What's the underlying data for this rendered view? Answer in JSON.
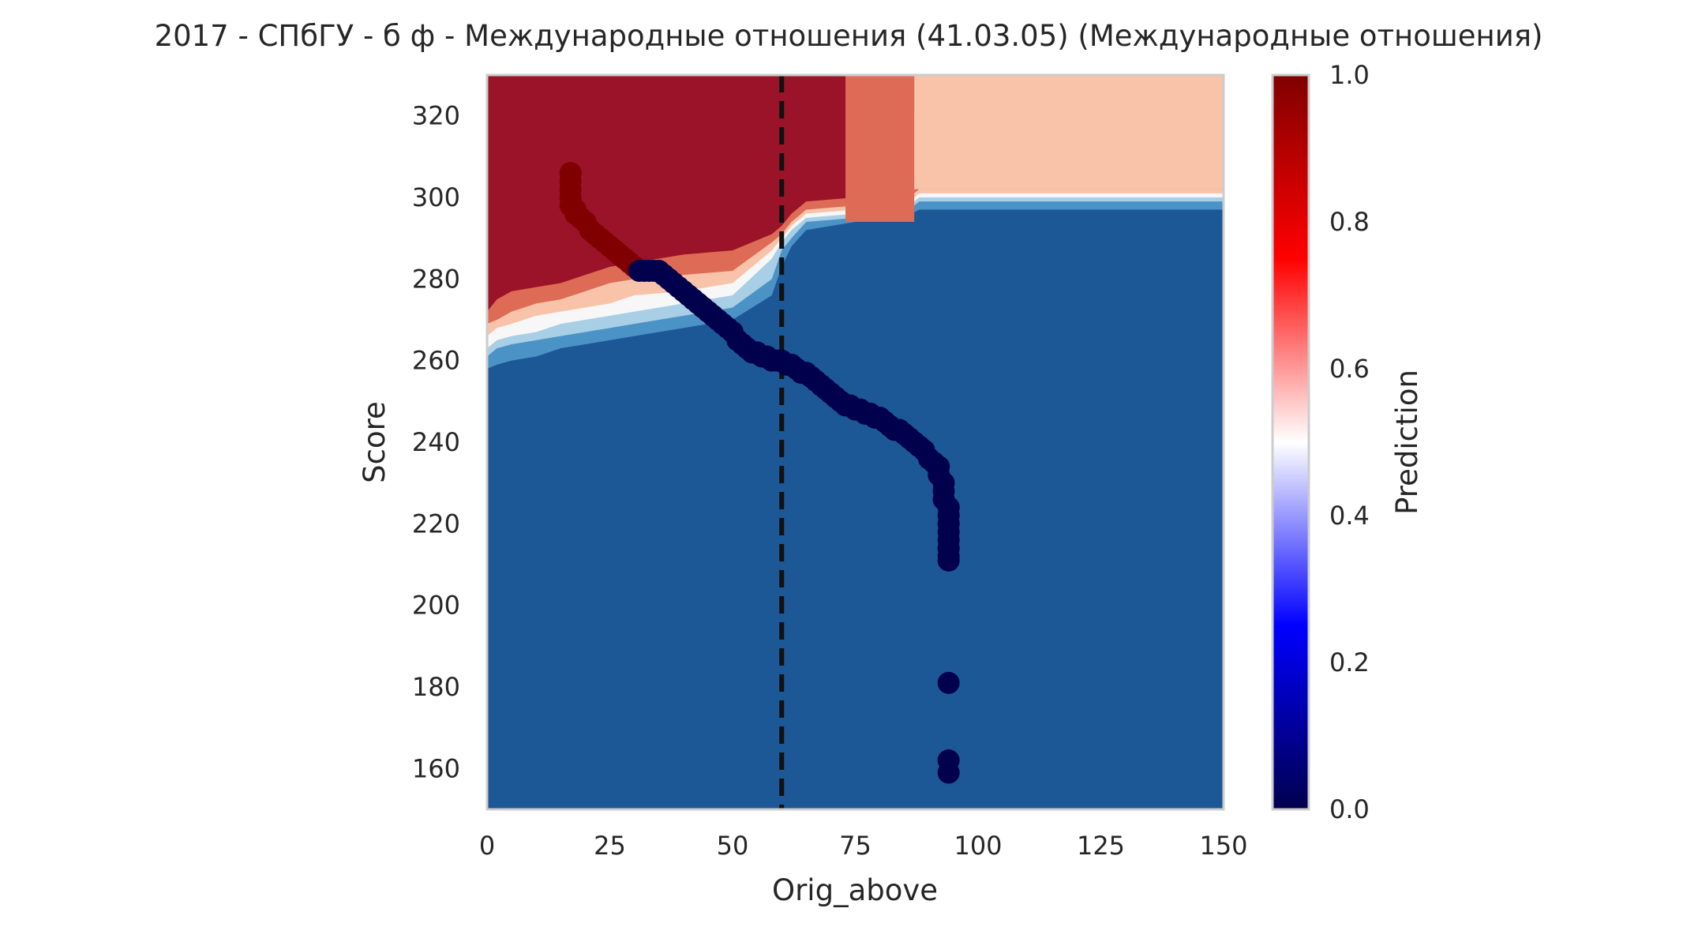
{
  "chart_data": {
    "type": "heatmap",
    "title": "2017 - СПбГУ - б ф - Международные отношения (41.03.05) (Международные отношения)",
    "xlabel": "Orig_above",
    "ylabel": "Score",
    "xlim": [
      0,
      150
    ],
    "ylim": [
      150,
      330
    ],
    "x_ticks": [
      0,
      25,
      50,
      75,
      100,
      125,
      150
    ],
    "y_ticks": [
      160,
      180,
      200,
      220,
      240,
      260,
      280,
      300,
      320
    ],
    "grid": false,
    "colormap": "seismic",
    "colorbar": {
      "label": "Prediction",
      "range": [
        0.0,
        1.0
      ],
      "ticks": [
        "0.0",
        "0.2",
        "0.4",
        "0.6",
        "0.8",
        "1.0"
      ],
      "stops": [
        "#00004d",
        "#0000ff",
        "#ffffff",
        "#ff0000",
        "#800000"
      ]
    },
    "contour_levels": {
      "level_colors": {
        "0.0": "#1c5796",
        "0.2": "#4b93c6",
        "0.3": "#a8cfe5",
        "0.5": "#f7f7f7",
        "0.6": "#f9c3aa",
        "0.7": "#de6b55",
        "1.0": "#9a1328"
      },
      "boundary_0.0_x": [
        0,
        2,
        5,
        10,
        15,
        20,
        25,
        30,
        40,
        50,
        58,
        60,
        62,
        65,
        75,
        85,
        88,
        100,
        150
      ],
      "boundary_0.0_y": [
        258,
        259,
        260,
        261,
        263,
        264,
        265,
        266,
        268,
        270,
        276,
        283,
        288,
        292,
        294,
        295,
        297,
        297,
        297
      ],
      "boundary_0.2_y": [
        261,
        263,
        264,
        265,
        266,
        267,
        268,
        269,
        271,
        273,
        280,
        287,
        290,
        294,
        295,
        296,
        299,
        299,
        299
      ],
      "boundary_0.3_y": [
        263,
        265,
        266,
        267,
        269,
        270,
        271,
        272,
        274,
        276,
        285,
        289,
        292,
        295,
        296,
        297,
        300,
        300,
        300
      ],
      "boundary_0.5_y": [
        266,
        268,
        269,
        271,
        272,
        273,
        274,
        276,
        277,
        279,
        287,
        290,
        293,
        296,
        297,
        298,
        301,
        301,
        301
      ],
      "boundary_0.6_y": [
        269,
        270,
        272,
        274,
        275,
        277,
        279,
        280,
        281,
        282,
        289,
        291,
        294,
        297,
        298,
        299,
        302,
        302,
        302
      ],
      "boundary_0.7_y": [
        272,
        275,
        277,
        278,
        279,
        281,
        283,
        284,
        286,
        287,
        291,
        293,
        296,
        299,
        300,
        301,
        330,
        330,
        330
      ],
      "red_high_band_x": [
        73,
        87
      ],
      "red_high_band_y": [
        294,
        330
      ]
    },
    "threshold_line": {
      "x": 60,
      "style": "dashed",
      "color": "#111111"
    },
    "scatter_color": "#00004d",
    "scatter_points": {
      "x": [
        17,
        17,
        17,
        17,
        17,
        18,
        18,
        19,
        20,
        21,
        22,
        23,
        24,
        25,
        26,
        27,
        28,
        29,
        30,
        31,
        32,
        33,
        34,
        35,
        36,
        37,
        38,
        39,
        40,
        41,
        42,
        43,
        44,
        45,
        46,
        47,
        48,
        49,
        50,
        51,
        52,
        53,
        54,
        55,
        56,
        57,
        58,
        59,
        60,
        61,
        62,
        63,
        64,
        65,
        66,
        67,
        68,
        69,
        70,
        71,
        72,
        73,
        74,
        75,
        76,
        77,
        78,
        79,
        80,
        81,
        82,
        83,
        84,
        85,
        86,
        87,
        88,
        89,
        90,
        91,
        92,
        92,
        93,
        93,
        93,
        94,
        94,
        94,
        94,
        94,
        94,
        94,
        94,
        94,
        94,
        94,
        94,
        94,
        94
      ],
      "y": [
        306,
        304,
        302,
        300,
        298,
        297,
        296,
        295,
        294,
        292,
        291,
        290,
        289,
        288,
        287,
        286,
        285,
        284,
        283,
        282,
        282,
        282,
        282,
        282,
        281,
        280,
        279,
        278,
        277,
        276,
        275,
        274,
        273,
        272,
        271,
        270,
        269,
        268,
        267,
        265,
        264,
        263,
        262,
        262,
        261,
        261,
        260,
        260,
        260,
        259,
        259,
        258,
        257,
        257,
        256,
        255,
        254,
        253,
        252,
        251,
        250,
        249,
        249,
        248,
        248,
        247,
        247,
        246,
        246,
        245,
        244,
        243,
        243,
        242,
        241,
        240,
        239,
        238,
        236,
        235,
        234,
        232,
        230,
        228,
        226,
        224,
        222,
        220,
        218,
        216,
        214,
        212,
        211,
        181,
        162,
        159,
        214,
        220,
        224
      ]
    },
    "scatter_predicted": [
      1,
      1,
      1,
      1,
      1,
      1,
      1,
      1,
      1,
      1,
      1,
      1,
      1,
      1,
      1,
      1,
      1,
      1,
      1,
      0,
      0,
      0,
      0,
      0,
      0,
      0,
      0,
      0,
      0,
      0,
      0,
      0,
      0,
      0,
      0,
      0,
      0,
      0,
      0,
      0,
      0,
      0,
      0,
      0,
      0,
      0,
      0,
      0,
      0,
      0,
      0,
      0,
      0,
      0,
      0,
      0,
      0,
      0,
      0,
      0,
      0,
      0,
      0,
      0,
      0,
      0,
      0,
      0,
      0,
      0,
      0,
      0,
      0,
      0,
      0,
      0,
      0,
      0,
      0,
      0,
      0,
      0,
      0,
      0,
      0,
      0,
      0,
      0,
      0,
      0,
      0,
      0,
      0,
      0,
      0,
      0,
      0,
      0,
      0
    ],
    "scatter_high_color": "#800000"
  }
}
